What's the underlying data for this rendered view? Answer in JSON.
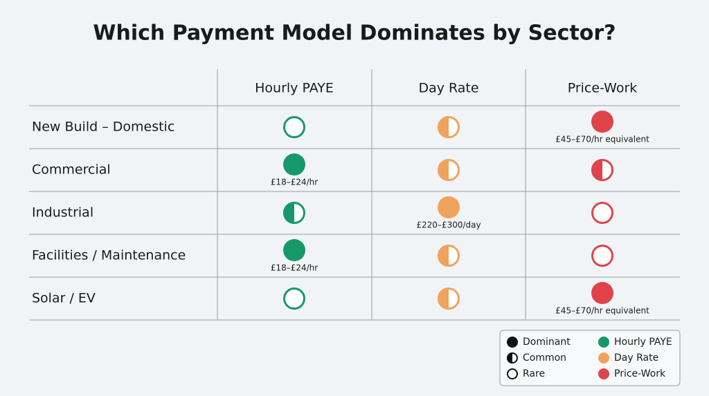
{
  "title": "Which Payment Model Dominates by Sector?",
  "table": {
    "columns": [
      "Hourly PAYE",
      "Day Rate",
      "Price-Work"
    ],
    "rows": [
      {
        "sector": "New Build – Domestic",
        "cells": [
          {
            "level": "Rare"
          },
          {
            "level": "Common"
          },
          {
            "level": "Dominant",
            "note": "£45–£70/hr equivalent"
          }
        ]
      },
      {
        "sector": "Commercial",
        "cells": [
          {
            "level": "Dominant",
            "note": "£18–£24/hr"
          },
          {
            "level": "Common"
          },
          {
            "level": "Common"
          }
        ]
      },
      {
        "sector": "Industrial",
        "cells": [
          {
            "level": "Common"
          },
          {
            "level": "Dominant",
            "note": "£220–£300/day"
          },
          {
            "level": "Rare"
          }
        ]
      },
      {
        "sector": "Facilities / Maintenance",
        "cells": [
          {
            "level": "Dominant",
            "note": "£18–£24/hr"
          },
          {
            "level": "Common"
          },
          {
            "level": "Rare"
          }
        ]
      },
      {
        "sector": "Solar / EV",
        "cells": [
          {
            "level": "Rare"
          },
          {
            "level": "Common"
          },
          {
            "level": "Dominant",
            "note": "£45–£70/hr equivalent"
          }
        ]
      }
    ]
  },
  "legend": {
    "levels": [
      "Dominant",
      "Common",
      "Rare"
    ],
    "models": [
      {
        "label": "Hourly PAYE",
        "color": "#17986b"
      },
      {
        "label": "Day Rate",
        "color": "#f0a35c"
      },
      {
        "label": "Price-Work",
        "color": "#e0444a"
      }
    ]
  }
}
